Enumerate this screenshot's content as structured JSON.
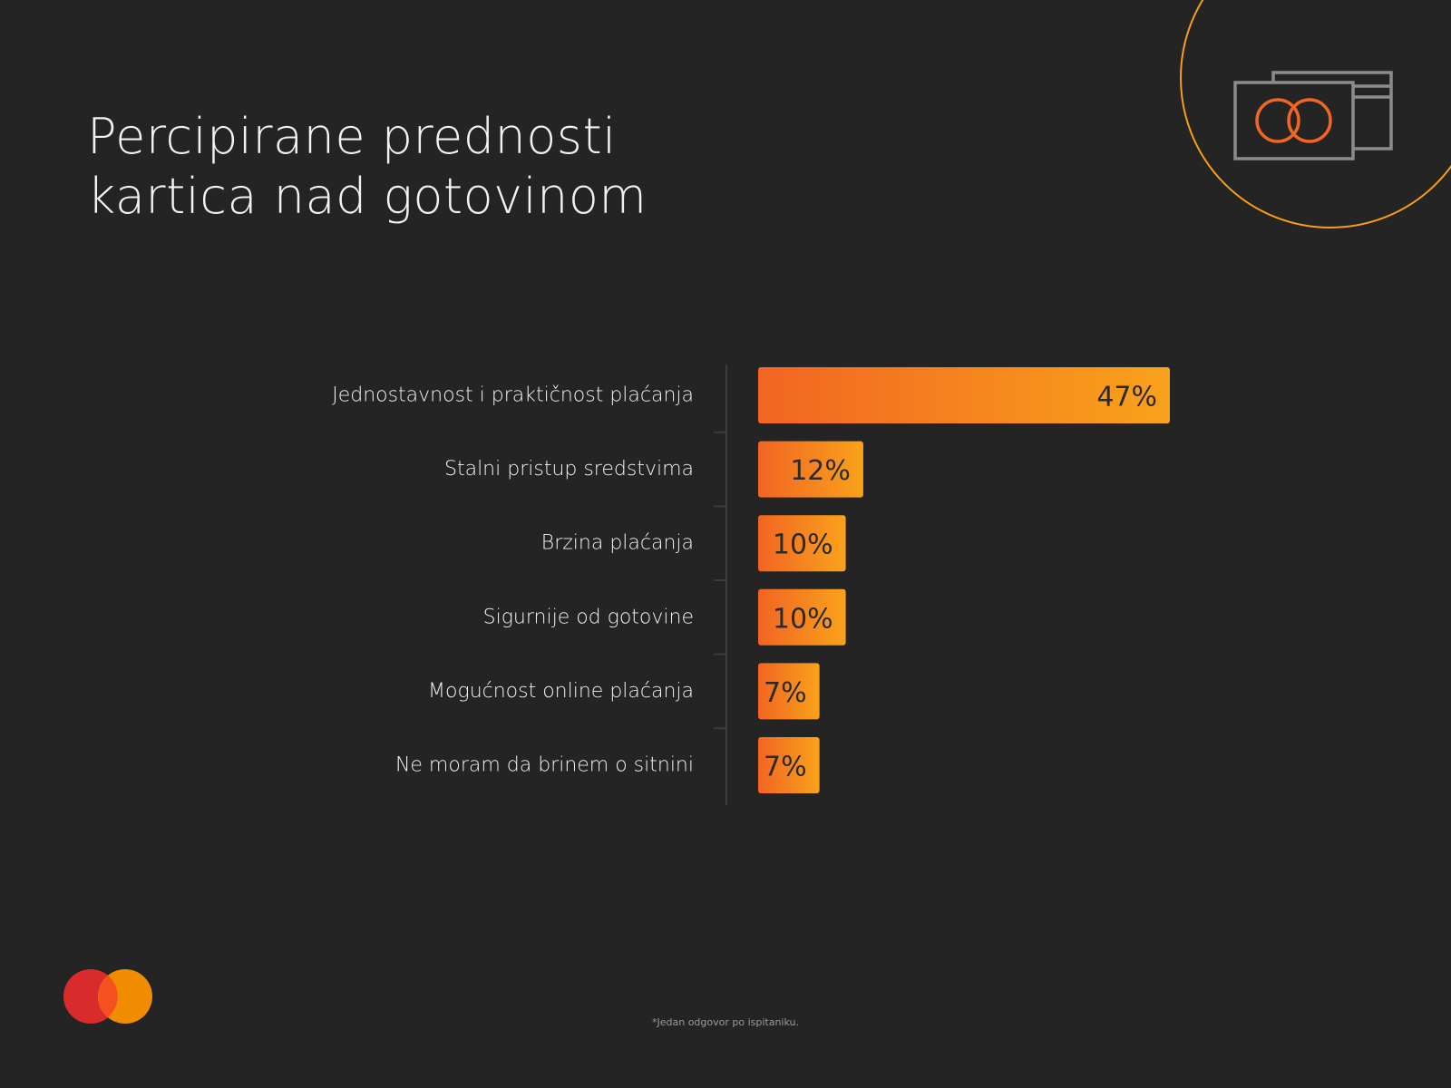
{
  "title_lines": [
    "Percipirane prednosti",
    "kartica nad gotovinom"
  ],
  "footnote": "*Jedan odgovor po ispitaniku.",
  "colors": {
    "background": "#242424",
    "bar_start": "#f26522",
    "bar_end": "#f9a21b",
    "deco_circle": "#f79e1b",
    "card_stroke": "#8c8c8c",
    "card_rings": "#f26522",
    "logo_red": "#eb001b",
    "logo_orange": "#f79e1b"
  },
  "icons": {
    "cards": "payment-cards-icon",
    "logo": "two-circles-logo"
  },
  "chart_data": {
    "type": "bar",
    "orientation": "horizontal",
    "categories": [
      "Jednostavnost i praktičnost plaćanja",
      "Stalni pristup sredstvima",
      "Brzina plaćanja",
      "Sigurnije od gotovine",
      "Mogućnost online plaćanja",
      "Ne moram da brinem o sitnini"
    ],
    "values": [
      47,
      12,
      10,
      10,
      7,
      7
    ],
    "value_labels": [
      "47%",
      "12%",
      "10%",
      "10%",
      "7%",
      "7%"
    ],
    "unit": "%",
    "xlim": [
      0,
      47
    ],
    "grid": false,
    "legend": "none"
  }
}
